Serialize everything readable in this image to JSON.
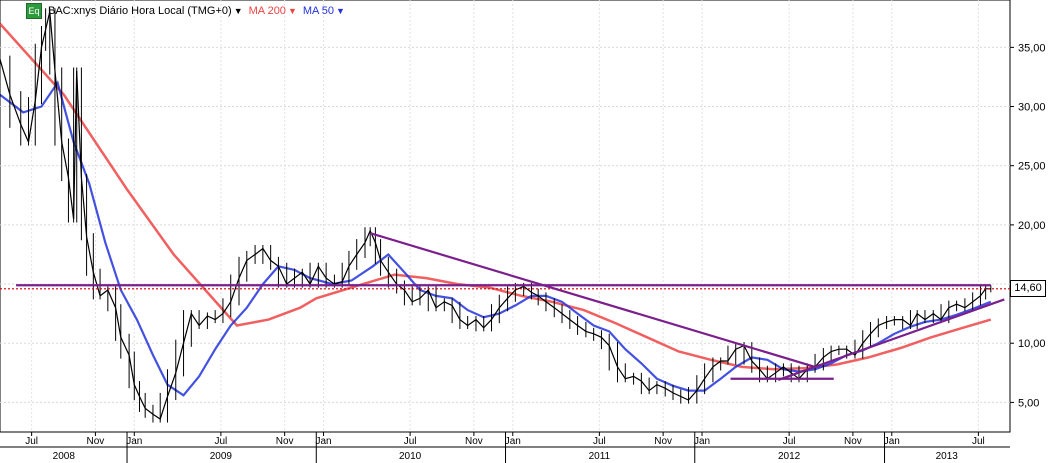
{
  "legend": {
    "instrument": "BAC:xnys Diário Hora Local (TMG+0)",
    "eq_badge": "Eq",
    "ma200_label": "MA 200",
    "ma50_label": "MA 50"
  },
  "chart_data": {
    "type": "line",
    "title": "BAC:xnys Diário Hora Local (TMG+0)",
    "price_label": "14,60",
    "ylim": [
      2.5,
      39
    ],
    "y_ticks": [
      "5,00",
      "10,00",
      "15,00",
      "20,00",
      "25,00",
      "30,00",
      "35,00"
    ],
    "y_tick_values": [
      5,
      10,
      15,
      20,
      25,
      30,
      35
    ],
    "grid": true,
    "x_range": [
      "2008-05-01",
      "2013-08-31"
    ],
    "month_ticks": [
      {
        "label": "Jul",
        "date": "2008-07-01"
      },
      {
        "label": "Nov",
        "date": "2008-11-01"
      },
      {
        "label": "Jan",
        "date": "2009-01-15"
      },
      {
        "label": "Jul",
        "date": "2009-07-01"
      },
      {
        "label": "Nov",
        "date": "2009-11-01"
      },
      {
        "label": "Jan",
        "date": "2010-01-15"
      },
      {
        "label": "Jul",
        "date": "2010-07-01"
      },
      {
        "label": "Nov",
        "date": "2010-11-01"
      },
      {
        "label": "Jan",
        "date": "2011-01-15"
      },
      {
        "label": "Jul",
        "date": "2011-07-01"
      },
      {
        "label": "Nov",
        "date": "2011-11-01"
      },
      {
        "label": "Jan",
        "date": "2012-01-15"
      },
      {
        "label": "Jul",
        "date": "2012-07-01"
      },
      {
        "label": "Nov",
        "date": "2012-11-01"
      },
      {
        "label": "Jan",
        "date": "2013-01-15"
      },
      {
        "label": "Jul",
        "date": "2013-07-01"
      }
    ],
    "year_ticks": [
      {
        "label": "2008",
        "date": "2008-09-01"
      },
      {
        "label": "2009",
        "date": "2009-07-01"
      },
      {
        "label": "2010",
        "date": "2010-07-01"
      },
      {
        "label": "2011",
        "date": "2011-07-01"
      },
      {
        "label": "2012",
        "date": "2012-07-01"
      },
      {
        "label": "2013",
        "date": "2013-05-01"
      }
    ],
    "year_separators": [
      "2009-01-01",
      "2010-01-01",
      "2011-01-01",
      "2012-01-01",
      "2013-01-01"
    ],
    "colors": {
      "price": "#000000",
      "ma200": "#ee4444",
      "ma50": "#2233dd",
      "trendline": "#7a1f8c",
      "last_price_line": "#cc0000"
    },
    "series": [
      {
        "name": "BAC:xnys",
        "role": "price",
        "points": [
          [
            "2008-05-01",
            34.0
          ],
          [
            "2008-05-20",
            31.0
          ],
          [
            "2008-06-10",
            28.5
          ],
          [
            "2008-06-25",
            27.0
          ],
          [
            "2008-07-08",
            30.5
          ],
          [
            "2008-07-20",
            35.0
          ],
          [
            "2008-07-28",
            36.5
          ],
          [
            "2008-08-05",
            38.0
          ],
          [
            "2008-08-15",
            33.0
          ],
          [
            "2008-08-28",
            27.0
          ],
          [
            "2008-09-10",
            24.0
          ],
          [
            "2008-09-20",
            20.5
          ],
          [
            "2008-09-26",
            33.0
          ],
          [
            "2008-10-05",
            24.0
          ],
          [
            "2008-10-15",
            19.0
          ],
          [
            "2008-10-28",
            16.0
          ],
          [
            "2008-11-10",
            14.0
          ],
          [
            "2008-11-25",
            14.5
          ],
          [
            "2008-12-10",
            13.0
          ],
          [
            "2008-12-20",
            10.5
          ],
          [
            "2009-01-05",
            9.0
          ],
          [
            "2009-01-15",
            6.5
          ],
          [
            "2009-01-25",
            5.5
          ],
          [
            "2009-02-05",
            4.5
          ],
          [
            "2009-02-20",
            4.0
          ],
          [
            "2009-03-06",
            3.6
          ],
          [
            "2009-03-20",
            5.5
          ],
          [
            "2009-04-05",
            7.5
          ],
          [
            "2009-04-20",
            10.0
          ],
          [
            "2009-05-05",
            12.5
          ],
          [
            "2009-05-20",
            11.5
          ],
          [
            "2009-06-05",
            12.3
          ],
          [
            "2009-06-20",
            12.0
          ],
          [
            "2009-07-05",
            12.5
          ],
          [
            "2009-07-20",
            13.5
          ],
          [
            "2009-08-05",
            15.5
          ],
          [
            "2009-08-20",
            17.0
          ],
          [
            "2009-09-05",
            17.5
          ],
          [
            "2009-09-20",
            18.0
          ],
          [
            "2009-10-05",
            17.0
          ],
          [
            "2009-10-20",
            16.5
          ],
          [
            "2009-11-05",
            15.0
          ],
          [
            "2009-11-20",
            15.5
          ],
          [
            "2009-12-05",
            16.0
          ],
          [
            "2009-12-20",
            15.0
          ],
          [
            "2010-01-05",
            16.5
          ],
          [
            "2010-01-20",
            15.5
          ],
          [
            "2010-02-05",
            15.0
          ],
          [
            "2010-02-20",
            15.2
          ],
          [
            "2010-03-05",
            16.5
          ],
          [
            "2010-03-20",
            17.5
          ],
          [
            "2010-04-05",
            18.5
          ],
          [
            "2010-04-15",
            19.5
          ],
          [
            "2010-04-25",
            18.5
          ],
          [
            "2010-05-05",
            17.0
          ],
          [
            "2010-05-20",
            16.0
          ],
          [
            "2010-06-05",
            15.0
          ],
          [
            "2010-06-20",
            14.5
          ],
          [
            "2010-07-05",
            13.5
          ],
          [
            "2010-07-20",
            13.8
          ],
          [
            "2010-08-05",
            14.5
          ],
          [
            "2010-08-20",
            13.0
          ],
          [
            "2010-09-05",
            13.5
          ],
          [
            "2010-09-20",
            13.2
          ],
          [
            "2010-10-05",
            12.0
          ],
          [
            "2010-10-20",
            11.5
          ],
          [
            "2010-11-05",
            12.0
          ],
          [
            "2010-11-20",
            11.3
          ],
          [
            "2010-12-05",
            12.0
          ],
          [
            "2010-12-20",
            13.0
          ],
          [
            "2011-01-05",
            13.8
          ],
          [
            "2011-01-20",
            14.5
          ],
          [
            "2011-02-05",
            14.8
          ],
          [
            "2011-02-20",
            14.3
          ],
          [
            "2011-03-05",
            14.0
          ],
          [
            "2011-03-20",
            13.5
          ],
          [
            "2011-04-05",
            13.0
          ],
          [
            "2011-04-20",
            12.5
          ],
          [
            "2011-05-05",
            12.0
          ],
          [
            "2011-05-20",
            11.5
          ],
          [
            "2011-06-05",
            11.0
          ],
          [
            "2011-06-20",
            10.8
          ],
          [
            "2011-07-05",
            10.5
          ],
          [
            "2011-07-20",
            9.8
          ],
          [
            "2011-08-05",
            8.0
          ],
          [
            "2011-08-20",
            7.0
          ],
          [
            "2011-09-05",
            7.2
          ],
          [
            "2011-09-20",
            6.8
          ],
          [
            "2011-10-05",
            6.0
          ],
          [
            "2011-10-20",
            6.5
          ],
          [
            "2011-11-05",
            6.2
          ],
          [
            "2011-11-20",
            5.8
          ],
          [
            "2011-12-05",
            5.5
          ],
          [
            "2011-12-20",
            5.2
          ],
          [
            "2012-01-05",
            6.0
          ],
          [
            "2012-01-20",
            7.0
          ],
          [
            "2012-02-05",
            8.0
          ],
          [
            "2012-02-20",
            8.5
          ],
          [
            "2012-03-05",
            8.5
          ],
          [
            "2012-03-20",
            9.5
          ],
          [
            "2012-04-05",
            9.8
          ],
          [
            "2012-04-20",
            8.5
          ],
          [
            "2012-05-05",
            7.8
          ],
          [
            "2012-05-20",
            7.0
          ],
          [
            "2012-06-05",
            7.5
          ],
          [
            "2012-06-20",
            8.0
          ],
          [
            "2012-07-05",
            7.5
          ],
          [
            "2012-07-20",
            7.0
          ],
          [
            "2012-08-05",
            7.8
          ],
          [
            "2012-08-20",
            8.0
          ],
          [
            "2012-09-05",
            8.8
          ],
          [
            "2012-09-20",
            9.3
          ],
          [
            "2012-10-05",
            9.5
          ],
          [
            "2012-10-20",
            9.5
          ],
          [
            "2012-11-05",
            9.0
          ],
          [
            "2012-11-20",
            10.0
          ],
          [
            "2012-12-05",
            10.8
          ],
          [
            "2012-12-20",
            11.5
          ],
          [
            "2013-01-05",
            11.8
          ],
          [
            "2013-01-20",
            12.0
          ],
          [
            "2013-02-05",
            12.0
          ],
          [
            "2013-02-20",
            11.5
          ],
          [
            "2013-03-05",
            12.5
          ],
          [
            "2013-03-20",
            12.0
          ],
          [
            "2013-04-05",
            12.5
          ],
          [
            "2013-04-20",
            12.0
          ],
          [
            "2013-05-05",
            13.0
          ],
          [
            "2013-05-20",
            13.3
          ],
          [
            "2013-06-05",
            13.0
          ],
          [
            "2013-06-20",
            13.5
          ],
          [
            "2013-07-05",
            14.0
          ],
          [
            "2013-07-15",
            14.6
          ],
          [
            "2013-07-25",
            14.6
          ]
        ]
      },
      {
        "name": "MA 200",
        "role": "ma200",
        "points": [
          [
            "2008-05-01",
            37.0
          ],
          [
            "2008-09-01",
            31.0
          ],
          [
            "2009-01-01",
            23.0
          ],
          [
            "2009-04-01",
            17.5
          ],
          [
            "2009-06-01",
            14.5
          ],
          [
            "2009-08-01",
            11.5
          ],
          [
            "2009-10-01",
            12.0
          ],
          [
            "2009-12-01",
            13.0
          ],
          [
            "2010-01-01",
            13.8
          ],
          [
            "2010-04-01",
            15.0
          ],
          [
            "2010-06-01",
            15.8
          ],
          [
            "2010-08-01",
            15.5
          ],
          [
            "2010-10-01",
            15.0
          ],
          [
            "2010-12-01",
            14.7
          ],
          [
            "2011-02-01",
            14.0
          ],
          [
            "2011-04-01",
            13.5
          ],
          [
            "2011-06-01",
            12.8
          ],
          [
            "2011-08-01",
            11.7
          ],
          [
            "2011-10-01",
            10.5
          ],
          [
            "2011-12-01",
            9.3
          ],
          [
            "2012-02-01",
            8.6
          ],
          [
            "2012-04-01",
            8.0
          ],
          [
            "2012-06-01",
            7.8
          ],
          [
            "2012-08-01",
            7.9
          ],
          [
            "2012-10-01",
            8.2
          ],
          [
            "2012-12-01",
            8.8
          ],
          [
            "2013-02-01",
            9.6
          ],
          [
            "2013-04-01",
            10.5
          ],
          [
            "2013-06-01",
            11.3
          ],
          [
            "2013-07-25",
            12.0
          ]
        ]
      },
      {
        "name": "MA 50",
        "role": "ma50",
        "points": [
          [
            "2008-05-01",
            31.0
          ],
          [
            "2008-06-15",
            29.5
          ],
          [
            "2008-07-20",
            30.0
          ],
          [
            "2008-08-20",
            32.0
          ],
          [
            "2008-09-20",
            27.0
          ],
          [
            "2008-10-20",
            23.5
          ],
          [
            "2008-11-20",
            18.5
          ],
          [
            "2008-12-20",
            14.5
          ],
          [
            "2009-01-20",
            12.0
          ],
          [
            "2009-02-20",
            9.0
          ],
          [
            "2009-03-20",
            6.5
          ],
          [
            "2009-04-20",
            5.6
          ],
          [
            "2009-05-20",
            7.2
          ],
          [
            "2009-06-20",
            9.5
          ],
          [
            "2009-07-20",
            11.5
          ],
          [
            "2009-08-20",
            13.0
          ],
          [
            "2009-09-20",
            15.0
          ],
          [
            "2009-10-20",
            16.5
          ],
          [
            "2009-11-20",
            16.2
          ],
          [
            "2009-12-20",
            15.5
          ],
          [
            "2010-02-01",
            15.0
          ],
          [
            "2010-03-10",
            15.3
          ],
          [
            "2010-04-20",
            16.5
          ],
          [
            "2010-05-20",
            17.5
          ],
          [
            "2010-06-20",
            16.0
          ],
          [
            "2010-07-20",
            14.5
          ],
          [
            "2010-08-20",
            14.0
          ],
          [
            "2010-09-20",
            13.8
          ],
          [
            "2010-10-20",
            12.8
          ],
          [
            "2010-11-20",
            12.2
          ],
          [
            "2010-12-20",
            12.5
          ],
          [
            "2011-01-20",
            13.2
          ],
          [
            "2011-02-20",
            14.0
          ],
          [
            "2011-03-20",
            14.0
          ],
          [
            "2011-04-20",
            13.5
          ],
          [
            "2011-05-20",
            12.5
          ],
          [
            "2011-06-20",
            11.5
          ],
          [
            "2011-07-20",
            11.0
          ],
          [
            "2011-08-20",
            9.5
          ],
          [
            "2011-09-20",
            8.3
          ],
          [
            "2011-10-20",
            7.0
          ],
          [
            "2011-11-20",
            6.4
          ],
          [
            "2011-12-20",
            6.0
          ],
          [
            "2012-01-20",
            6.0
          ],
          [
            "2012-02-20",
            7.0
          ],
          [
            "2012-03-20",
            8.0
          ],
          [
            "2012-04-20",
            8.8
          ],
          [
            "2012-05-20",
            8.6
          ],
          [
            "2012-06-20",
            7.8
          ],
          [
            "2012-07-20",
            7.6
          ],
          [
            "2012-08-20",
            7.8
          ],
          [
            "2012-09-20",
            8.3
          ],
          [
            "2012-10-20",
            9.0
          ],
          [
            "2012-11-20",
            9.4
          ],
          [
            "2012-12-20",
            10.0
          ],
          [
            "2013-01-20",
            10.8
          ],
          [
            "2013-02-20",
            11.4
          ],
          [
            "2013-03-20",
            11.8
          ],
          [
            "2013-04-20",
            12.0
          ],
          [
            "2013-05-20",
            12.4
          ],
          [
            "2013-06-20",
            12.9
          ],
          [
            "2013-07-25",
            13.5
          ]
        ]
      }
    ],
    "annotations": [
      {
        "name": "horizontal-resistance",
        "type": "line",
        "from": [
          "2008-06-01",
          14.9
        ],
        "to": [
          "2013-07-25",
          14.9
        ]
      },
      {
        "name": "descending-trendline",
        "type": "line",
        "from": [
          "2010-04-15",
          19.3
        ],
        "to": [
          "2012-08-20",
          8.0
        ]
      },
      {
        "name": "ascending-trendline",
        "type": "line",
        "from": [
          "2012-06-10",
          6.9
        ],
        "to": [
          "2013-08-20",
          13.7
        ]
      },
      {
        "name": "support-line",
        "type": "line",
        "from": [
          "2012-03-10",
          7.0
        ],
        "to": [
          "2012-09-25",
          7.0
        ]
      },
      {
        "name": "last-price-line",
        "type": "dotted",
        "value": 14.6
      }
    ]
  }
}
